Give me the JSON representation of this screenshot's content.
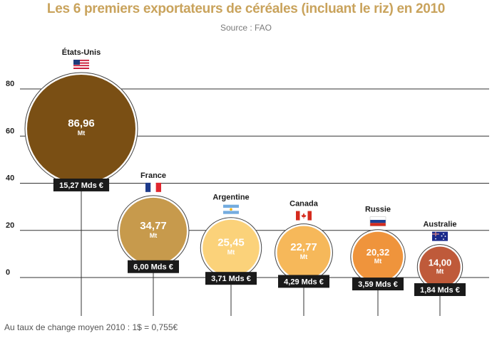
{
  "header": {
    "title": "Les 6 premiers exportateurs de céréales (incluant le riz) en 2010",
    "source": "Source : FAO"
  },
  "footnote": "Au taux de change moyen 2010 : 1$ = 0,755€",
  "chart_data": {
    "type": "bubble",
    "title": "Les 6 premiers exportateurs de céréales (incluant le riz) en 2010",
    "ylim": [
      0,
      80
    ],
    "yticks": [
      0,
      20,
      40,
      60,
      80
    ],
    "grid": true,
    "unit_label": "Mt",
    "points": [
      {
        "country": "États-Unis",
        "value": 86.96,
        "value_label": "86,96",
        "money_label": "15,27 Mds €",
        "color": "#7a4f14",
        "flag": "usa-flag"
      },
      {
        "country": "France",
        "value": 34.77,
        "value_label": "34,77",
        "money_label": "6,00 Mds €",
        "color": "#c79a4c",
        "flag": "france-flag"
      },
      {
        "country": "Argentine",
        "value": 25.45,
        "value_label": "25,45",
        "money_label": "3,71 Mds €",
        "color": "#fbd27a",
        "flag": "argentina-flag"
      },
      {
        "country": "Canada",
        "value": 22.77,
        "value_label": "22,77",
        "money_label": "4,29 Mds €",
        "color": "#f6b85a",
        "flag": "canada-flag"
      },
      {
        "country": "Russie",
        "value": 20.32,
        "value_label": "20,32",
        "money_label": "3,59 Mds €",
        "color": "#ef943c",
        "flag": "russia-flag"
      },
      {
        "country": "Australie",
        "value": 14.0,
        "value_label": "14,00",
        "money_label": "1,84 Mds €",
        "color": "#bf5a3a",
        "flag": "australia-flag"
      }
    ]
  }
}
